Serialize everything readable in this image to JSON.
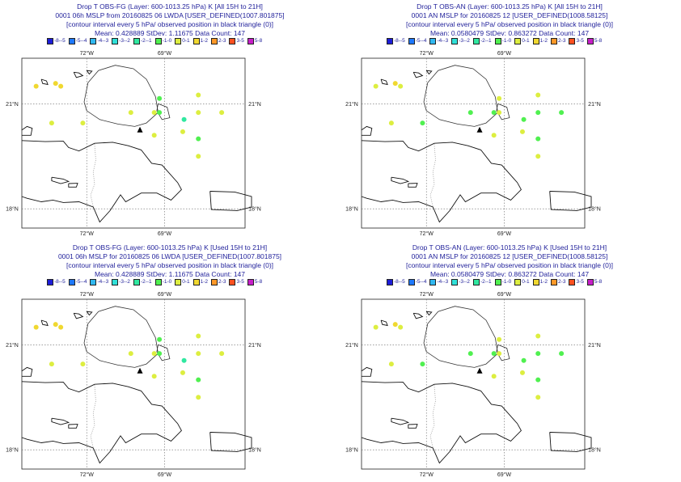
{
  "colors": {
    "header_text": "#1f1f9a",
    "land": "#ffffff",
    "coast": "#111111",
    "grid": "#666666",
    "triangle": "#000000"
  },
  "legend": [
    {
      "label": "-8--5",
      "color": "#1c1cd8"
    },
    {
      "label": "-5--4",
      "color": "#1e78ff"
    },
    {
      "label": "-4--3",
      "color": "#30b8f0"
    },
    {
      "label": "-3--2",
      "color": "#30e0d8"
    },
    {
      "label": "-2--1",
      "color": "#30e8a0"
    },
    {
      "label": "-1-0",
      "color": "#50f050"
    },
    {
      "label": "0-1",
      "color": "#ddee40"
    },
    {
      "label": "1-2",
      "color": "#f0d830"
    },
    {
      "label": "2-3",
      "color": "#ff9828"
    },
    {
      "label": "3-5",
      "color": "#ff5020"
    },
    {
      "label": "5-8",
      "color": "#c81ec8"
    }
  ],
  "axes": {
    "lon_labels": [
      "72°W",
      "69°W"
    ],
    "lat_labels": [
      "21°N",
      "18°N"
    ]
  },
  "panels": [
    {
      "id": "fg-all",
      "title": "Drop T OBS-FG (Layer: 600-1013.25 hPa) K [All 15H to 21H]",
      "line2": "0001 06h MSLP from 20160825 06 LWDA [USER_DEFINED(1007.801875]",
      "line3": "[contour interval every 5 hPa/ observed position in black triangle (0)]",
      "stats": "Mean: 0.428889 StDev: 1.11675 Data Count: 147",
      "obs": [
        {
          "lon": -73.95,
          "lat": 21.5,
          "color": "#f0d830"
        },
        {
          "lon": -73.0,
          "lat": 21.5,
          "color": "#f0d830"
        },
        {
          "lon": -73.2,
          "lat": 21.58,
          "color": "#f0d830"
        },
        {
          "lon": -73.35,
          "lat": 20.45,
          "color": "#ddee40"
        },
        {
          "lon": -72.15,
          "lat": 20.45,
          "color": "#ddee40"
        },
        {
          "lon": -69.2,
          "lat": 21.15,
          "color": "#50f050"
        },
        {
          "lon": -69.2,
          "lat": 20.75,
          "color": "#50f050"
        },
        {
          "lon": -70.3,
          "lat": 20.75,
          "color": "#ddee40"
        },
        {
          "lon": -69.4,
          "lat": 20.75,
          "color": "#ddee40"
        },
        {
          "lon": -67.7,
          "lat": 21.25,
          "color": "#ddee40"
        },
        {
          "lon": -67.7,
          "lat": 20.75,
          "color": "#ddee40"
        },
        {
          "lon": -66.8,
          "lat": 20.75,
          "color": "#ddee40"
        },
        {
          "lon": -68.25,
          "lat": 20.55,
          "color": "#30e8a0"
        },
        {
          "lon": -68.3,
          "lat": 20.2,
          "color": "#ddee40"
        },
        {
          "lon": -69.4,
          "lat": 20.1,
          "color": "#ddee40"
        },
        {
          "lon": -67.7,
          "lat": 20.0,
          "color": "#50f050"
        },
        {
          "lon": -67.7,
          "lat": 19.5,
          "color": "#ddee40"
        }
      ],
      "triangle": {
        "lon": -69.95,
        "lat": 20.25
      }
    },
    {
      "id": "an-all",
      "title": "Drop T OBS-AN (Layer: 600-1013.25 hPa) K [All 15H to 21H]",
      "line2": "0001 AN MSLP for 20160825 12 [USER_DEFINED(1008.58125]",
      "line3": "[contour interval every 5 hPa/ observed position in black triangle (0)]",
      "stats": "Mean: 0.0580479 StDev: 0.863272 Data Count: 147",
      "obs": [
        {
          "lon": -73.95,
          "lat": 21.5,
          "color": "#ddee40"
        },
        {
          "lon": -73.0,
          "lat": 21.5,
          "color": "#ddee40"
        },
        {
          "lon": -73.2,
          "lat": 21.58,
          "color": "#f0d830"
        },
        {
          "lon": -73.35,
          "lat": 20.45,
          "color": "#ddee40"
        },
        {
          "lon": -72.15,
          "lat": 20.45,
          "color": "#50f050"
        },
        {
          "lon": -69.2,
          "lat": 21.15,
          "color": "#ddee40"
        },
        {
          "lon": -69.2,
          "lat": 20.75,
          "color": "#ddee40"
        },
        {
          "lon": -70.3,
          "lat": 20.75,
          "color": "#50f050"
        },
        {
          "lon": -69.4,
          "lat": 20.75,
          "color": "#50f050"
        },
        {
          "lon": -67.7,
          "lat": 21.25,
          "color": "#ddee40"
        },
        {
          "lon": -67.7,
          "lat": 20.75,
          "color": "#50f050"
        },
        {
          "lon": -66.8,
          "lat": 20.75,
          "color": "#50f050"
        },
        {
          "lon": -68.25,
          "lat": 20.55,
          "color": "#50f050"
        },
        {
          "lon": -68.3,
          "lat": 20.2,
          "color": "#ddee40"
        },
        {
          "lon": -69.4,
          "lat": 20.1,
          "color": "#ddee40"
        },
        {
          "lon": -67.7,
          "lat": 20.0,
          "color": "#50f050"
        },
        {
          "lon": -67.7,
          "lat": 19.5,
          "color": "#ddee40"
        }
      ],
      "triangle": {
        "lon": -69.95,
        "lat": 20.25
      }
    },
    {
      "id": "fg-used",
      "title": "Drop T OBS-FG (Layer: 600-1013.25 hPa) K [Used 15H to 21H]",
      "line2": "0001 06h MSLP for 20160825 06 LWDA [USER_DEFINED(1007.801875]",
      "line3": "[contour interval every 5 hPa/ observed position in black triangle (0)]",
      "stats": "Mean: 0.428889 StDev: 1.11675 Data Count: 147",
      "obs": [
        {
          "lon": -73.95,
          "lat": 21.5,
          "color": "#f0d830"
        },
        {
          "lon": -73.0,
          "lat": 21.5,
          "color": "#f0d830"
        },
        {
          "lon": -73.2,
          "lat": 21.58,
          "color": "#f0d830"
        },
        {
          "lon": -73.35,
          "lat": 20.45,
          "color": "#ddee40"
        },
        {
          "lon": -72.15,
          "lat": 20.45,
          "color": "#ddee40"
        },
        {
          "lon": -69.2,
          "lat": 21.15,
          "color": "#50f050"
        },
        {
          "lon": -69.2,
          "lat": 20.75,
          "color": "#50f050"
        },
        {
          "lon": -70.3,
          "lat": 20.75,
          "color": "#ddee40"
        },
        {
          "lon": -69.4,
          "lat": 20.75,
          "color": "#ddee40"
        },
        {
          "lon": -67.7,
          "lat": 21.25,
          "color": "#ddee40"
        },
        {
          "lon": -67.7,
          "lat": 20.75,
          "color": "#ddee40"
        },
        {
          "lon": -66.8,
          "lat": 20.75,
          "color": "#ddee40"
        },
        {
          "lon": -68.25,
          "lat": 20.55,
          "color": "#30e8a0"
        },
        {
          "lon": -68.3,
          "lat": 20.2,
          "color": "#ddee40"
        },
        {
          "lon": -69.4,
          "lat": 20.1,
          "color": "#ddee40"
        },
        {
          "lon": -67.7,
          "lat": 20.0,
          "color": "#50f050"
        },
        {
          "lon": -67.7,
          "lat": 19.5,
          "color": "#ddee40"
        }
      ],
      "triangle": {
        "lon": -69.95,
        "lat": 20.25
      }
    },
    {
      "id": "an-used",
      "title": "Drop T OBS-AN (Layer: 600-1013.25 hPa) K [Used 15H to 21H]",
      "line2": "0001 AN MSLP for 20160825 12 [USER_DEFINED(1008.58125]",
      "line3": "[contour interval every 5 hPa/ observed position in black triangle (0)]",
      "stats": "Mean: 0.0580479 StDev: 0.863272 Data Count: 147",
      "obs": [
        {
          "lon": -73.95,
          "lat": 21.5,
          "color": "#ddee40"
        },
        {
          "lon": -73.0,
          "lat": 21.5,
          "color": "#ddee40"
        },
        {
          "lon": -73.2,
          "lat": 21.58,
          "color": "#f0d830"
        },
        {
          "lon": -73.35,
          "lat": 20.45,
          "color": "#ddee40"
        },
        {
          "lon": -72.15,
          "lat": 20.45,
          "color": "#50f050"
        },
        {
          "lon": -69.2,
          "lat": 21.15,
          "color": "#ddee40"
        },
        {
          "lon": -69.2,
          "lat": 20.75,
          "color": "#ddee40"
        },
        {
          "lon": -70.3,
          "lat": 20.75,
          "color": "#50f050"
        },
        {
          "lon": -69.4,
          "lat": 20.75,
          "color": "#50f050"
        },
        {
          "lon": -67.7,
          "lat": 21.25,
          "color": "#ddee40"
        },
        {
          "lon": -67.7,
          "lat": 20.75,
          "color": "#50f050"
        },
        {
          "lon": -66.8,
          "lat": 20.75,
          "color": "#50f050"
        },
        {
          "lon": -68.25,
          "lat": 20.55,
          "color": "#50f050"
        },
        {
          "lon": -68.3,
          "lat": 20.2,
          "color": "#ddee40"
        },
        {
          "lon": -69.4,
          "lat": 20.1,
          "color": "#ddee40"
        },
        {
          "lon": -67.7,
          "lat": 20.0,
          "color": "#50f050"
        },
        {
          "lon": -67.7,
          "lat": 19.5,
          "color": "#ddee40"
        }
      ],
      "triangle": {
        "lon": -69.95,
        "lat": 20.25
      }
    }
  ]
}
